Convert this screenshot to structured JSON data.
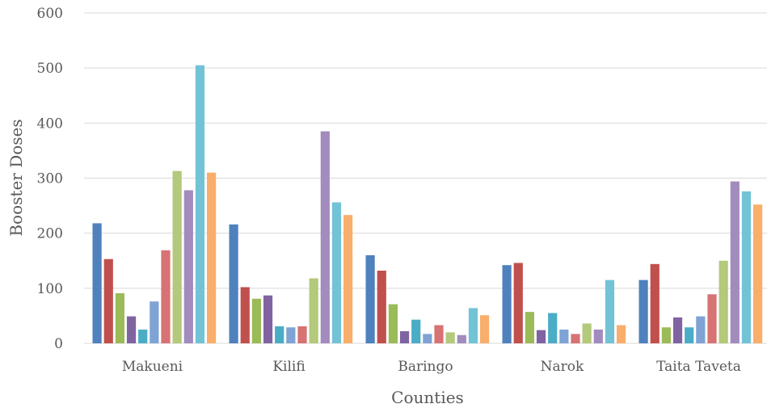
{
  "chart_data": {
    "type": "bar",
    "categories": [
      "Makueni",
      "Kilifi",
      "Baringo",
      "Narok",
      "Taita Taveta"
    ],
    "xlabel": "Counties",
    "ylabel": "Booster Doses",
    "ylim": [
      0,
      600
    ],
    "yticks": [
      0,
      100,
      200,
      300,
      400,
      500,
      600
    ],
    "grid": true,
    "series": [
      {
        "color": "#4f81bd",
        "values": [
          218,
          216,
          160,
          142,
          115
        ]
      },
      {
        "color": "#c0504d",
        "values": [
          153,
          102,
          132,
          146,
          144
        ]
      },
      {
        "color": "#9bbb59",
        "values": [
          91,
          81,
          71,
          57,
          29
        ]
      },
      {
        "color": "#8064a2",
        "values": [
          49,
          87,
          22,
          24,
          47
        ]
      },
      {
        "color": "#4bacc6",
        "values": [
          25,
          31,
          43,
          55,
          29
        ]
      },
      {
        "color": "#7ea3d4",
        "values": [
          76,
          29,
          17,
          25,
          49
        ]
      },
      {
        "color": "#d77373",
        "values": [
          169,
          31,
          33,
          17,
          89
        ]
      },
      {
        "color": "#b3c97b",
        "values": [
          313,
          118,
          20,
          36,
          150
        ]
      },
      {
        "color": "#a28bbd",
        "values": [
          278,
          385,
          15,
          25,
          294
        ]
      },
      {
        "color": "#73c3d6",
        "values": [
          505,
          256,
          64,
          115,
          276
        ]
      },
      {
        "color": "#f9ae6b",
        "values": [
          310,
          233,
          51,
          33,
          252
        ]
      }
    ]
  }
}
